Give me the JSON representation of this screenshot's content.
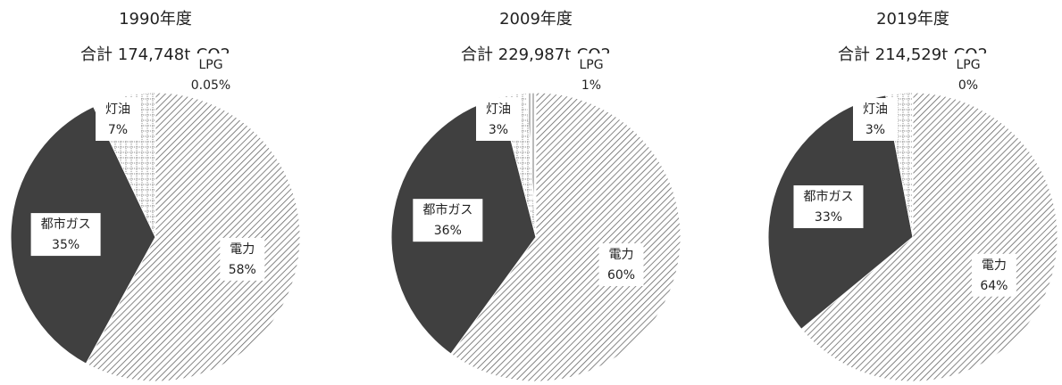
{
  "chart_data": [
    {
      "type": "pie",
      "title": "1990年度",
      "subtitle": "合計 174,748t-CO2",
      "categories": [
        "電力",
        "都市ガス",
        "灯油",
        "LPG"
      ],
      "values": [
        58,
        35,
        7,
        0.05
      ],
      "value_labels": [
        "58%",
        "35%",
        "7%",
        "0.05%"
      ]
    },
    {
      "type": "pie",
      "title": "2009年度",
      "subtitle": "合計 229,987t-CO2",
      "categories": [
        "電力",
        "都市ガス",
        "灯油",
        "LPG"
      ],
      "values": [
        60,
        36,
        3,
        1
      ],
      "value_labels": [
        "60%",
        "36%",
        "3%",
        "1%"
      ]
    },
    {
      "type": "pie",
      "title": "2019年度",
      "subtitle": "合計 214,529t-CO2",
      "categories": [
        "電力",
        "都市ガス",
        "灯油",
        "LPG"
      ],
      "values": [
        64,
        33,
        3,
        0
      ],
      "value_labels": [
        "64%",
        "33%",
        "3%",
        "0%"
      ]
    }
  ]
}
